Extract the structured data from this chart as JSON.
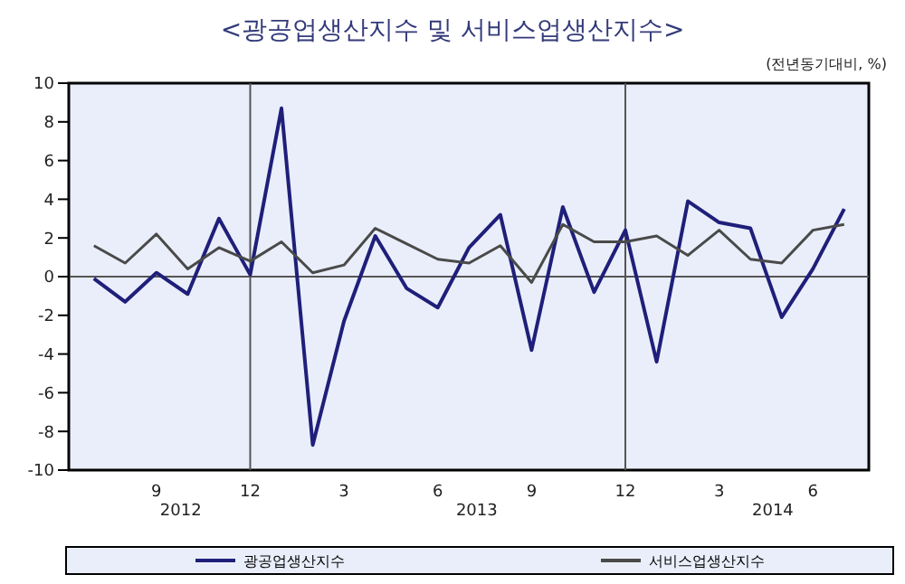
{
  "chart_data": {
    "type": "line",
    "title": "<광공업생산지수 및 서비스업생산지수>",
    "subtitle": "(전년동기대비, %)",
    "x": [
      "2012-07",
      "2012-08",
      "2012-09",
      "2012-10",
      "2012-11",
      "2012-12",
      "2013-01",
      "2013-02",
      "2013-03",
      "2013-04",
      "2013-05",
      "2013-06",
      "2013-07",
      "2013-08",
      "2013-09",
      "2013-10",
      "2013-11",
      "2013-12",
      "2014-01",
      "2014-02",
      "2014-03",
      "2014-04",
      "2014-05",
      "2014-06",
      "2014-07"
    ],
    "series": [
      {
        "name": "광공업생산지수",
        "color": "#1f1f7a",
        "values": [
          -0.1,
          -1.3,
          0.2,
          -0.9,
          3.0,
          0.1,
          8.7,
          -8.7,
          -2.3,
          2.1,
          -0.6,
          -1.6,
          1.5,
          3.2,
          -3.8,
          3.6,
          -0.8,
          2.4,
          -4.4,
          3.9,
          2.8,
          2.5,
          -2.1,
          0.4,
          3.5
        ]
      },
      {
        "name": "서비스업생산지수",
        "color": "#4a4a4a",
        "values": [
          1.6,
          0.7,
          2.2,
          0.4,
          1.5,
          0.8,
          1.8,
          0.2,
          0.6,
          2.5,
          1.7,
          0.9,
          0.7,
          1.6,
          -0.3,
          2.7,
          1.8,
          1.8,
          2.1,
          1.1,
          2.4,
          0.9,
          0.7,
          2.4,
          2.7
        ]
      }
    ],
    "xlim": [
      "2012-06-07",
      "2014-07-25"
    ],
    "xticks": [
      {
        "value": "2012-09",
        "label": "9"
      },
      {
        "value": "2012-12",
        "label": "12"
      },
      {
        "value": "2013-03",
        "label": "3"
      },
      {
        "value": "2013-06",
        "label": "6"
      },
      {
        "value": "2013-09",
        "label": "9"
      },
      {
        "value": "2013-12",
        "label": "12"
      },
      {
        "value": "2014-03",
        "label": "3"
      },
      {
        "value": "2014-06",
        "label": "6"
      }
    ],
    "ylim": [
      -10,
      10
    ],
    "yticks": [
      -10,
      -8,
      -6,
      -4,
      -2,
      0,
      2,
      4,
      6,
      8,
      10
    ],
    "ref_lines": [
      {
        "axis": "y",
        "value": 0,
        "color": "#555555"
      },
      {
        "axis": "x",
        "value": "2012-12",
        "color": "#555555"
      },
      {
        "axis": "x",
        "value": "2013-12",
        "color": "#555555"
      }
    ],
    "annotations": [
      "2012",
      "2013",
      "2014"
    ],
    "legend": "bottom",
    "marker": "none",
    "line_style": "solid"
  }
}
